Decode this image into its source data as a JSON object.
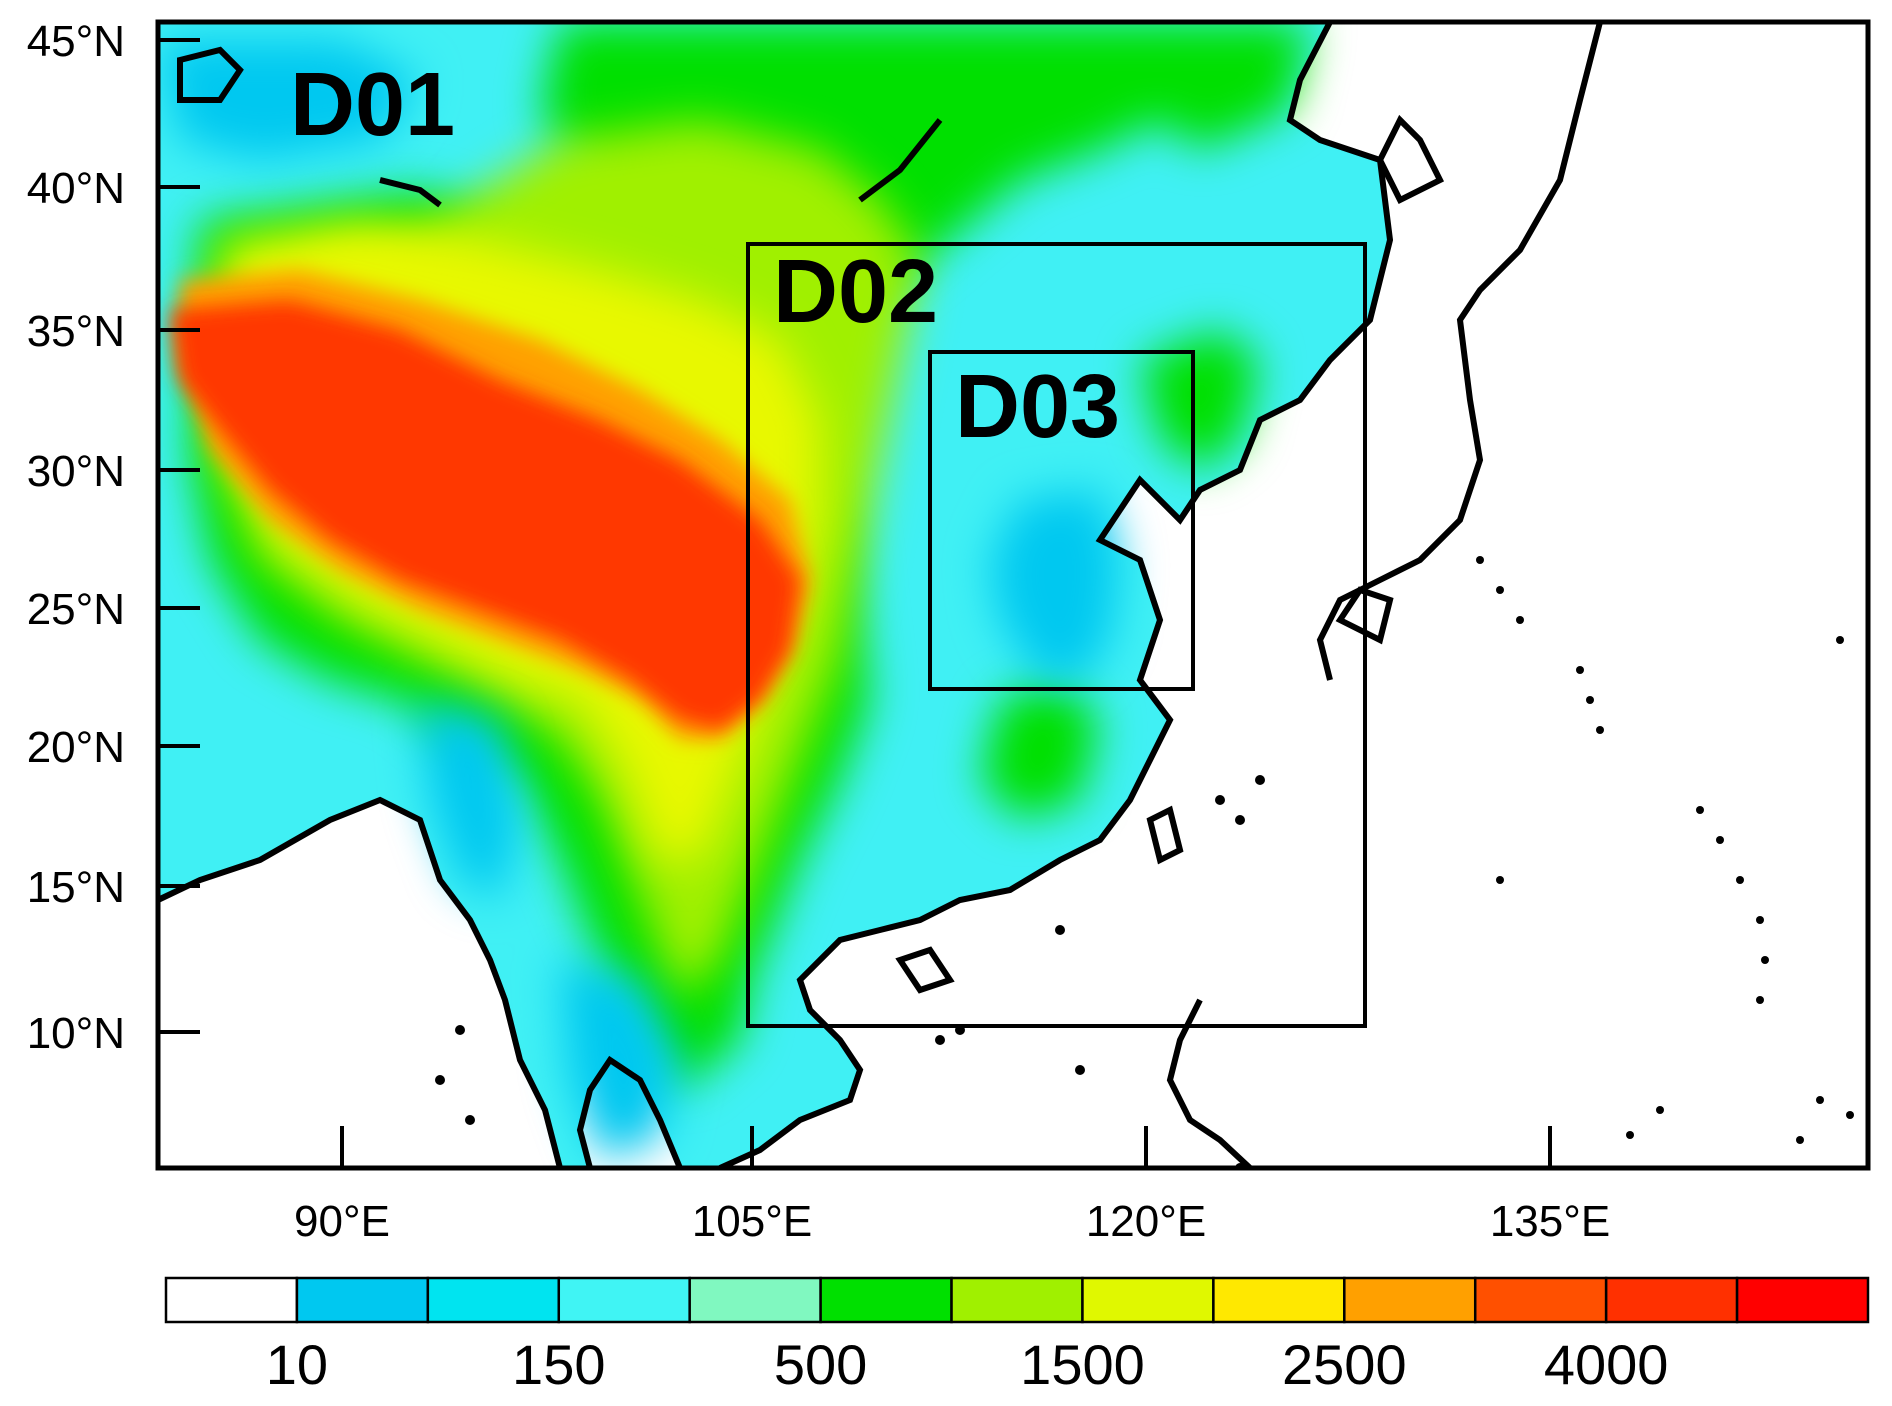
{
  "map": {
    "lat_ticks": [
      "45°N",
      "40°N",
      "35°N",
      "30°N",
      "25°N",
      "20°N",
      "15°N",
      "10°N"
    ],
    "lon_ticks": [
      "90°E",
      "105°E",
      "120°E",
      "135°E"
    ],
    "domains": [
      {
        "label": "D01",
        "lon_range": [
          80,
          145
        ],
        "lat_range": [
          5,
          45
        ]
      },
      {
        "label": "D02",
        "lon_range": [
          102.5,
          126
        ],
        "lat_range": [
          10,
          38
        ]
      },
      {
        "label": "D03",
        "lon_range": [
          110,
          120
        ],
        "lat_range": [
          22,
          34
        ]
      }
    ]
  },
  "colorbar": {
    "colors": [
      "#ffffff",
      "#00c8f0",
      "#00e4f0",
      "#40f4f4",
      "#80f8c0",
      "#00e000",
      "#a0f000",
      "#e0f800",
      "#ffe800",
      "#ffa000",
      "#ff5000",
      "#ff3000",
      "#ff0000"
    ],
    "labels": [
      "10",
      "150",
      "500",
      "1500",
      "2500",
      "4000"
    ]
  }
}
